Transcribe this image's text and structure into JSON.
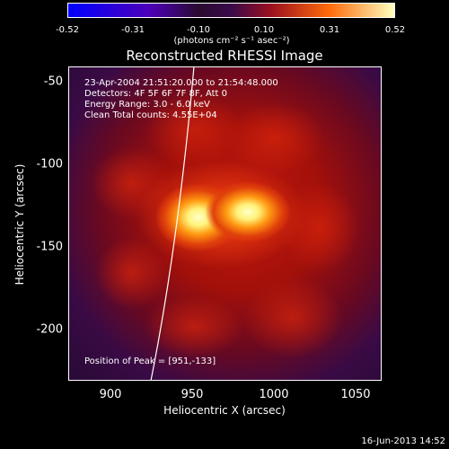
{
  "colorbar": {
    "ticks": [
      "-0.52",
      "-0.31",
      "-0.10",
      "0.10",
      "0.31",
      "0.52"
    ],
    "units_text": "(photons cm⁻² s⁻¹ asec⁻²)"
  },
  "title": "Reconstructed RHESSI Image",
  "annotations": {
    "time_range": "23-Apr-2004 21:51:20.000 to 21:54:48.000",
    "detectors": "Detectors: 4F 5F 6F 7F 8F, Att 0",
    "energy_range": "Energy Range: 3.0 - 6.0 keV",
    "clean_counts": "Clean     Total counts: 4.55E+04",
    "peak_position": "Position of Peak = [951,-133]"
  },
  "axes": {
    "x_label": "Heliocentric X (arcsec)",
    "y_label": "Heliocentric Y (arcsec)",
    "x_ticks": [
      "900",
      "950",
      "1000",
      "1050"
    ],
    "y_ticks": [
      "-50",
      "-100",
      "-150",
      "-200"
    ],
    "x_range": [
      872,
      1065
    ],
    "y_range": [
      -232,
      -40
    ]
  },
  "footer": "16-Jun-2013 14:52",
  "colors": {
    "background": "#000000",
    "colormap": [
      "#0000ff",
      "#5000c0",
      "#2a0f2c",
      "#4a0b6a",
      "#b5150b",
      "#ff8d0f",
      "#ffffb0"
    ]
  }
}
